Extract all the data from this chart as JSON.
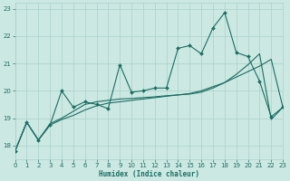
{
  "xlabel": "Humidex (Indice chaleur)",
  "xlim": [
    0,
    23
  ],
  "ylim": [
    17.5,
    23.2
  ],
  "xticks": [
    0,
    1,
    2,
    3,
    4,
    5,
    6,
    7,
    8,
    9,
    10,
    11,
    12,
    13,
    14,
    15,
    16,
    17,
    18,
    19,
    20,
    21,
    22,
    23
  ],
  "yticks": [
    18,
    19,
    20,
    21,
    22,
    23
  ],
  "bg_color": "#cce8e2",
  "grid_color": "#aad0ca",
  "line_color": "#1a6e64",
  "line1_x": [
    0,
    1,
    2,
    3,
    4,
    5,
    6,
    7,
    8,
    9,
    10,
    11,
    12,
    13,
    14,
    15,
    16,
    17,
    18,
    19,
    20,
    21,
    22,
    23
  ],
  "line1_y": [
    17.8,
    18.85,
    18.2,
    18.75,
    20.0,
    19.4,
    19.6,
    19.5,
    19.35,
    20.95,
    19.95,
    20.0,
    20.1,
    20.1,
    21.55,
    21.65,
    21.35,
    22.3,
    22.85,
    21.4,
    21.25,
    20.35,
    19.05,
    19.4
  ],
  "line2_x": [
    0,
    1,
    2,
    3,
    4,
    5,
    6,
    7,
    8,
    9,
    10,
    11,
    12,
    13,
    14,
    15,
    16,
    17,
    18,
    19,
    20,
    21,
    22,
    23
  ],
  "line2_y": [
    17.8,
    18.85,
    18.2,
    18.75,
    18.95,
    19.1,
    19.3,
    19.45,
    19.55,
    19.6,
    19.65,
    19.7,
    19.75,
    19.8,
    19.85,
    19.9,
    20.0,
    20.15,
    20.3,
    20.5,
    20.7,
    20.9,
    21.15,
    19.4
  ],
  "line3_x": [
    0,
    1,
    2,
    3,
    4,
    5,
    6,
    7,
    8,
    9,
    10,
    11,
    12,
    13,
    14,
    15,
    16,
    17,
    18,
    19,
    20,
    21,
    22,
    23
  ],
  "line3_y": [
    17.8,
    18.85,
    18.2,
    18.8,
    19.0,
    19.25,
    19.5,
    19.6,
    19.65,
    19.7,
    19.72,
    19.75,
    19.78,
    19.82,
    19.85,
    19.88,
    19.95,
    20.1,
    20.3,
    20.6,
    20.95,
    21.35,
    18.95,
    19.4
  ]
}
